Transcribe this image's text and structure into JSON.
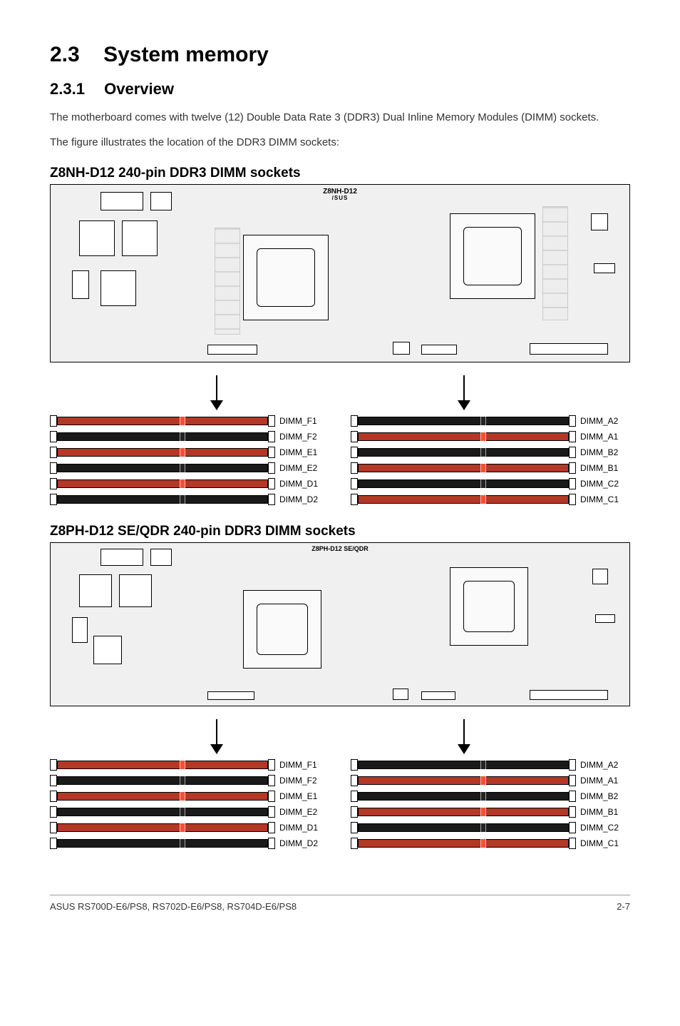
{
  "section": {
    "number": "2.3",
    "title": "System memory"
  },
  "subsection": {
    "number": "2.3.1",
    "title": "Overview"
  },
  "paragraphs": {
    "p1": "The motherboard comes with twelve (12) Double Data Rate 3 (DDR3) Dual Inline Memory Modules (DIMM) sockets.",
    "p2": "The figure illustrates the location of the DDR3 DIMM sockets:"
  },
  "diagram1": {
    "title": "Z8NH-D12 240-pin DDR3 DIMM sockets",
    "board_model": "Z8NH-D12",
    "board_brand": "/SUS",
    "left_slots": [
      {
        "label": "DIMM_F1",
        "color": "red"
      },
      {
        "label": "DIMM_F2",
        "color": "black"
      },
      {
        "label": "DIMM_E1",
        "color": "red"
      },
      {
        "label": "DIMM_E2",
        "color": "black"
      },
      {
        "label": "DIMM_D1",
        "color": "red"
      },
      {
        "label": "DIMM_D2",
        "color": "black"
      }
    ],
    "right_slots": [
      {
        "label": "DIMM_A2",
        "color": "black"
      },
      {
        "label": "DIMM_A1",
        "color": "red"
      },
      {
        "label": "DIMM_B2",
        "color": "black"
      },
      {
        "label": "DIMM_B1",
        "color": "red"
      },
      {
        "label": "DIMM_C2",
        "color": "black"
      },
      {
        "label": "DIMM_C1",
        "color": "red"
      }
    ]
  },
  "diagram2": {
    "title": "Z8PH-D12 SE/QDR 240-pin DDR3 DIMM sockets",
    "board_model": "Z8PH-D12 SE/QDR",
    "left_slots": [
      {
        "label": "DIMM_F1",
        "color": "red"
      },
      {
        "label": "DIMM_F2",
        "color": "black"
      },
      {
        "label": "DIMM_E1",
        "color": "red"
      },
      {
        "label": "DIMM_E2",
        "color": "black"
      },
      {
        "label": "DIMM_D1",
        "color": "red"
      },
      {
        "label": "DIMM_D2",
        "color": "black"
      }
    ],
    "right_slots": [
      {
        "label": "DIMM_A2",
        "color": "black"
      },
      {
        "label": "DIMM_A1",
        "color": "red"
      },
      {
        "label": "DIMM_B2",
        "color": "black"
      },
      {
        "label": "DIMM_B1",
        "color": "red"
      },
      {
        "label": "DIMM_C2",
        "color": "black"
      },
      {
        "label": "DIMM_C1",
        "color": "red"
      }
    ]
  },
  "footer": {
    "left": "ASUS RS700D-E6/PS8, RS702D-E6/PS8, RS704D-E6/PS8",
    "right": "2-7"
  },
  "colors": {
    "red_slot": "#b33826",
    "black_slot": "#1a1a1a",
    "page_bg": "#ffffff",
    "board_bg": "#f0f0f0"
  }
}
